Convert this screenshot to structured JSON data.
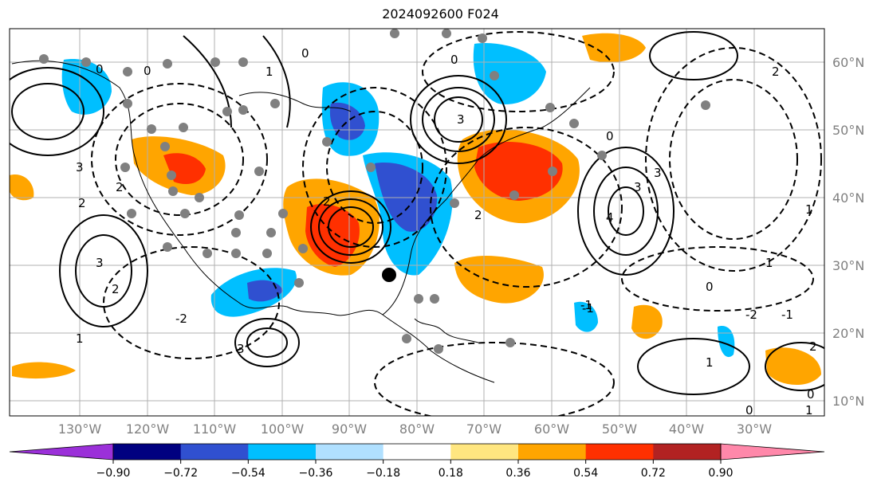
{
  "title": "2024092600 F024",
  "lat_labels": [
    "60°N",
    "50°N",
    "40°N",
    "30°N",
    "20°N",
    "10°N"
  ],
  "lon_labels": [
    "130°W",
    "120°W",
    "110°W",
    "100°W",
    "90°W",
    "80°W",
    "70°W",
    "60°W",
    "50°W",
    "40°W",
    "30°W"
  ],
  "colorbar": {
    "ticks": [
      "−0.90",
      "−0.72",
      "−0.54",
      "−0.36",
      "−0.18",
      "0.18",
      "0.36",
      "0.54",
      "0.72",
      "0.90"
    ],
    "colors": [
      "#9b30d9",
      "#000080",
      "#3050d0",
      "#00bfff",
      "#b0e0ff",
      "#ffffff",
      "#ffe680",
      "#ffa500",
      "#ff3000",
      "#b22222",
      "#ff88aa"
    ]
  },
  "contour_labels": [
    "0",
    "2",
    "3",
    "2",
    "3",
    "0",
    "3",
    "4",
    "3",
    "1",
    "-1",
    "0",
    "3",
    "2",
    "1",
    "-2",
    "3",
    "2",
    "1",
    "-1",
    "2",
    "1",
    "0",
    "1",
    "0",
    "0",
    "2",
    "-2",
    "-1",
    "0",
    "2",
    "1",
    "0"
  ]
}
